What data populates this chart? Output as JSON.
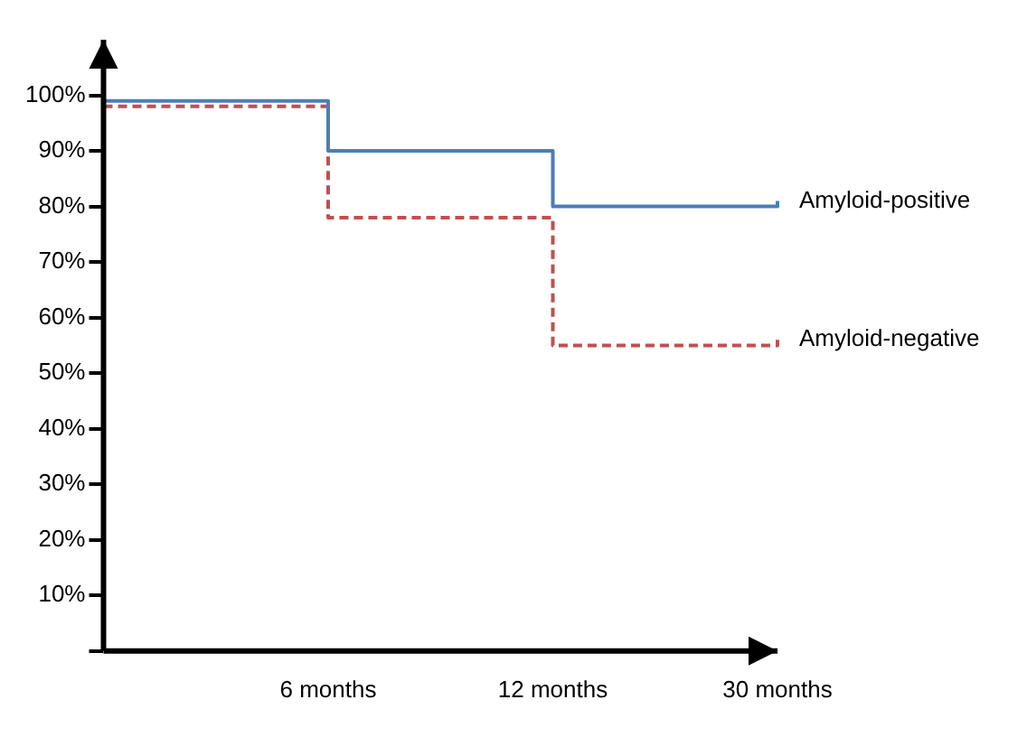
{
  "chart_data": {
    "type": "step",
    "categories": [
      null,
      "6 months",
      "12 months",
      "30 months"
    ],
    "series": [
      {
        "name": "Amyloid-positive",
        "color": "#4a7ebb",
        "values": [
          99,
          90,
          80,
          81
        ],
        "line_style": "solid"
      },
      {
        "name": "Amyloid-negative",
        "color": "#c0504d",
        "values": [
          98,
          78,
          55,
          56
        ],
        "line_style": "dashed"
      }
    ],
    "ylim": [
      0,
      110
    ],
    "yticks": [
      {
        "value": 0,
        "label": null
      },
      {
        "value": 10,
        "label": "10%"
      },
      {
        "value": 20,
        "label": "20%"
      },
      {
        "value": 30,
        "label": "30%"
      },
      {
        "value": 40,
        "label": "40%"
      },
      {
        "value": 50,
        "label": "50%"
      },
      {
        "value": 60,
        "label": "60%"
      },
      {
        "value": 70,
        "label": "70%"
      },
      {
        "value": 80,
        "label": "80%"
      },
      {
        "value": 90,
        "label": "90%"
      },
      {
        "value": 100,
        "label": "100%"
      }
    ],
    "grid": false,
    "legend": false,
    "marker": "none"
  }
}
